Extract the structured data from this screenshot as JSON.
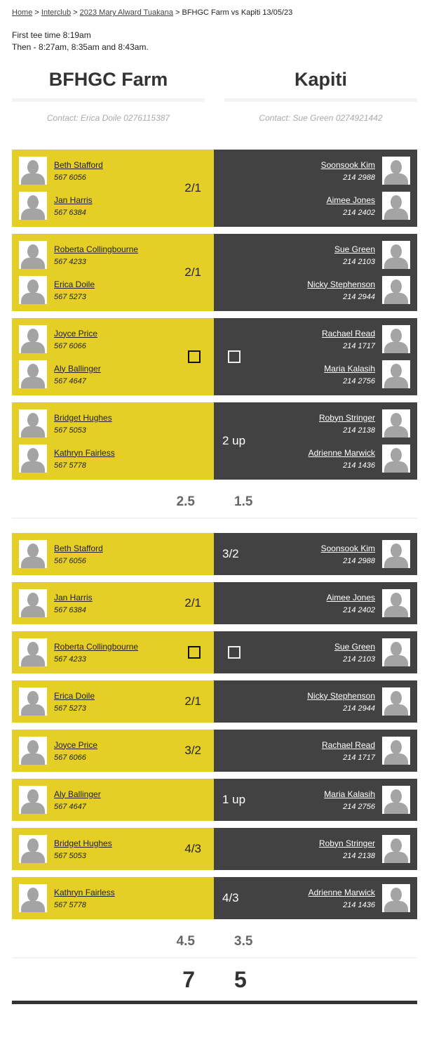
{
  "breadcrumb": {
    "items": [
      "Home",
      "Interclub",
      "2023 Mary Alward Tuakana"
    ],
    "current": "BFHGC Farm vs Kapiti 13/05/23",
    "sep": " > "
  },
  "tee": {
    "line1": "First tee time 8:19am",
    "line2": "Then - 8:27am, 8:35am and 8:43am."
  },
  "teams": [
    {
      "name": "BFHGC Farm",
      "contact": "Contact: Erica Doile 0276115387"
    },
    {
      "name": "Kapiti",
      "contact": "Contact: Sue Green 0274921442"
    }
  ],
  "colors": {
    "home": "#e5cf27",
    "away": "#424242"
  },
  "fourballs": [
    {
      "home": [
        [
          "Beth Stafford",
          "567 6056"
        ],
        [
          "Jan Harris",
          "567 6384"
        ]
      ],
      "away": [
        [
          "Soonsook Kim",
          "214 2988"
        ],
        [
          "Aimee Jones",
          "214 2402"
        ]
      ],
      "home_score": "2/1",
      "away_score": ""
    },
    {
      "home": [
        [
          "Roberta Collingbourne",
          "567 4233"
        ],
        [
          "Erica Doile",
          "567 5273"
        ]
      ],
      "away": [
        [
          "Sue Green",
          "214 2103"
        ],
        [
          "Nicky Stephenson",
          "214 2944"
        ]
      ],
      "home_score": "2/1",
      "away_score": ""
    },
    {
      "home": [
        [
          "Joyce Price",
          "567 6066"
        ],
        [
          "Aly Ballinger",
          "567 4647"
        ]
      ],
      "away": [
        [
          "Rachael Read",
          "214 1717"
        ],
        [
          "Maria Kalasih",
          "214 2756"
        ]
      ],
      "home_score": "",
      "away_score": "",
      "halved": true
    },
    {
      "home": [
        [
          "Bridget Hughes",
          "567 5053"
        ],
        [
          "Kathryn Fairless",
          "567 5778"
        ]
      ],
      "away": [
        [
          "Robyn Stringer",
          "214 2138"
        ],
        [
          "Adrienne Marwick",
          "214 1436"
        ]
      ],
      "home_score": "",
      "away_score": "2 up"
    }
  ],
  "fourball_totals": [
    "2.5",
    "1.5"
  ],
  "singles": [
    {
      "home": [
        [
          "Beth Stafford",
          "567 6056"
        ]
      ],
      "away": [
        [
          "Soonsook Kim",
          "214 2988"
        ]
      ],
      "home_score": "",
      "away_score": "3/2"
    },
    {
      "home": [
        [
          "Jan Harris",
          "567 6384"
        ]
      ],
      "away": [
        [
          "Aimee Jones",
          "214 2402"
        ]
      ],
      "home_score": "2/1",
      "away_score": ""
    },
    {
      "home": [
        [
          "Roberta Collingbourne",
          "567 4233"
        ]
      ],
      "away": [
        [
          "Sue Green",
          "214 2103"
        ]
      ],
      "home_score": "",
      "away_score": "",
      "halved": true
    },
    {
      "home": [
        [
          "Erica Doile",
          "567 5273"
        ]
      ],
      "away": [
        [
          "Nicky Stephenson",
          "214 2944"
        ]
      ],
      "home_score": "2/1",
      "away_score": ""
    },
    {
      "home": [
        [
          "Joyce Price",
          "567 6066"
        ]
      ],
      "away": [
        [
          "Rachael Read",
          "214 1717"
        ]
      ],
      "home_score": "3/2",
      "away_score": ""
    },
    {
      "home": [
        [
          "Aly Ballinger",
          "567 4647"
        ]
      ],
      "away": [
        [
          "Maria Kalasih",
          "214 2756"
        ]
      ],
      "home_score": "",
      "away_score": "1 up"
    },
    {
      "home": [
        [
          "Bridget Hughes",
          "567 5053"
        ]
      ],
      "away": [
        [
          "Robyn Stringer",
          "214 2138"
        ]
      ],
      "home_score": "4/3",
      "away_score": ""
    },
    {
      "home": [
        [
          "Kathryn Fairless",
          "567 5778"
        ]
      ],
      "away": [
        [
          "Adrienne Marwick",
          "214 1436"
        ]
      ],
      "home_score": "",
      "away_score": "4/3"
    }
  ],
  "singles_totals": [
    "4.5",
    "3.5"
  ],
  "grand_totals": [
    "7",
    "5"
  ]
}
